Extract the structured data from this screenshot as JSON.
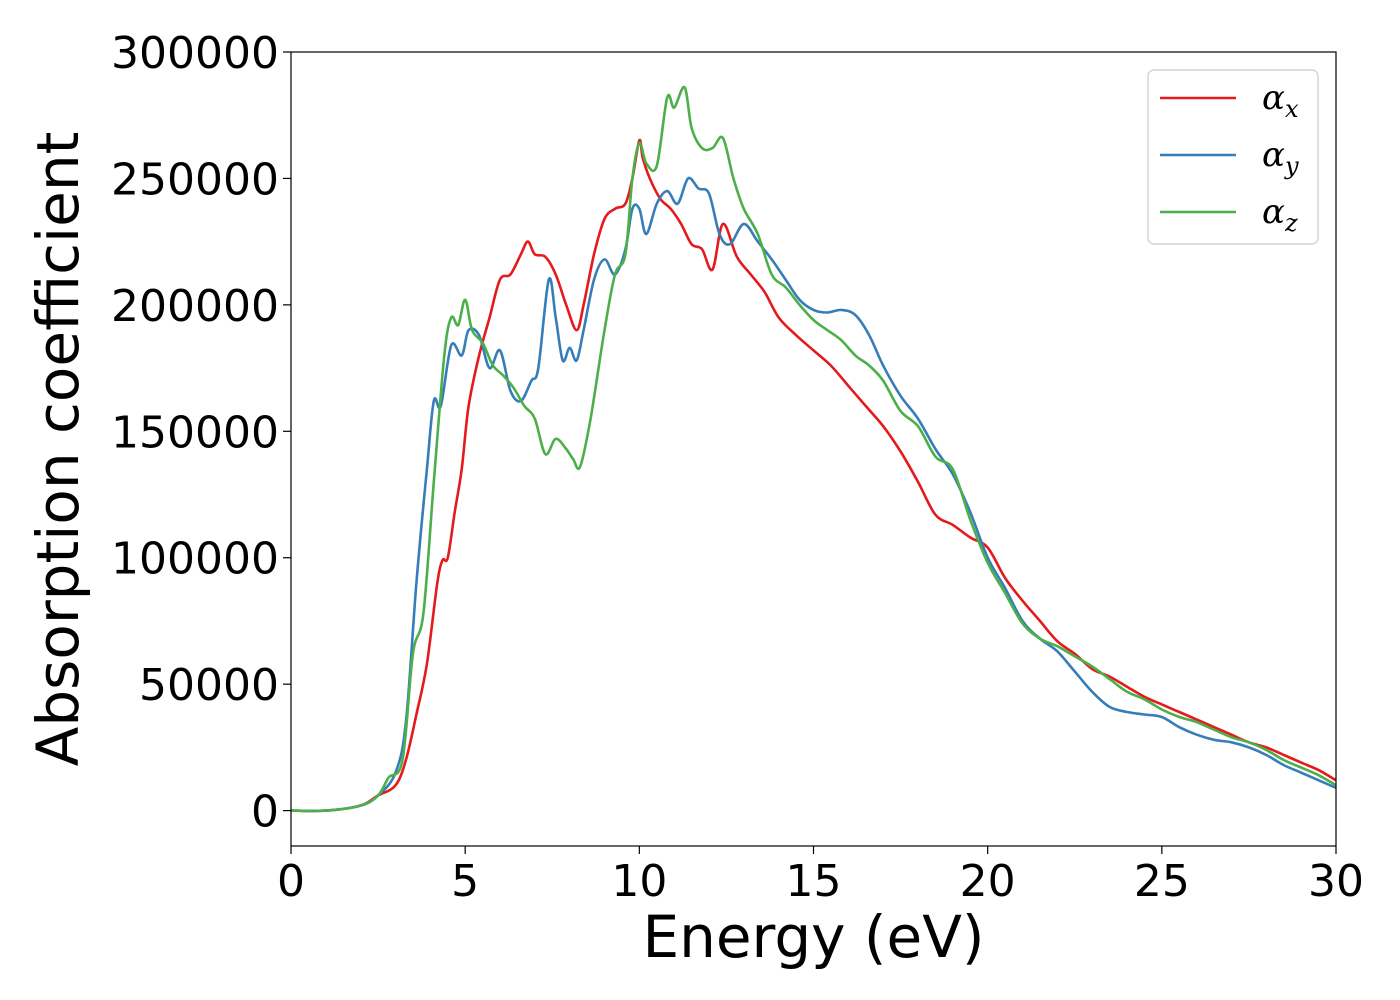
{
  "chart_data": {
    "type": "line",
    "title": "",
    "xlabel": "Energy (eV)",
    "ylabel": "Absorption coefficient",
    "xlim": [
      0,
      30
    ],
    "ylim": [
      -14000,
      300000
    ],
    "xticks": [
      0,
      5,
      10,
      15,
      20,
      25,
      30
    ],
    "yticks": [
      0,
      50000,
      100000,
      150000,
      200000,
      250000,
      300000
    ],
    "grid": false,
    "legend_position": "top-right",
    "series": [
      {
        "name": "α_x",
        "symbol": "α",
        "subscript": "x",
        "color": "#e41a1c",
        "x": [
          0,
          1,
          2,
          2.5,
          3,
          3.3,
          3.6,
          3.9,
          4.2,
          4.35,
          4.5,
          4.7,
          4.9,
          5.1,
          5.4,
          5.7,
          6.0,
          6.3,
          6.6,
          6.8,
          7.0,
          7.3,
          7.6,
          7.9,
          8.2,
          8.4,
          8.7,
          9.0,
          9.3,
          9.6,
          9.8,
          10.0,
          10.1,
          10.3,
          10.6,
          10.9,
          11.2,
          11.5,
          11.8,
          12.1,
          12.4,
          12.8,
          13.2,
          13.6,
          14.0,
          14.5,
          15.0,
          15.5,
          16.0,
          16.5,
          17.0,
          17.5,
          18.0,
          18.5,
          19.0,
          19.5,
          20.0,
          20.5,
          21.0,
          21.5,
          22.0,
          22.5,
          23.0,
          23.5,
          24.0,
          24.5,
          25.0,
          25.5,
          26.0,
          26.5,
          27.0,
          27.5,
          28.0,
          28.5,
          29.0,
          29.5,
          30.0
        ],
        "y": [
          0,
          0,
          2000,
          6000,
          10000,
          20000,
          38000,
          58000,
          90000,
          99000,
          100000,
          118000,
          135000,
          160000,
          180000,
          195000,
          210000,
          212000,
          220000,
          225000,
          220000,
          219000,
          212000,
          200000,
          190000,
          200000,
          220000,
          234000,
          238000,
          240000,
          250000,
          265000,
          258000,
          250000,
          242000,
          238000,
          232000,
          224000,
          222000,
          214000,
          232000,
          219000,
          212000,
          205000,
          195000,
          188000,
          182000,
          176000,
          168000,
          160000,
          152000,
          142000,
          130000,
          117000,
          113000,
          108000,
          104000,
          92000,
          83000,
          75000,
          67000,
          62000,
          56000,
          53000,
          49000,
          45000,
          42000,
          39000,
          36000,
          33000,
          30000,
          27000,
          25000,
          22000,
          19000,
          16000,
          12000
        ],
        "values": [
          0,
          0,
          2000,
          6000,
          10000,
          20000,
          38000,
          58000,
          90000,
          99000,
          100000,
          118000,
          135000,
          160000,
          180000,
          195000,
          210000,
          212000,
          220000,
          225000,
          220000,
          219000,
          212000,
          200000,
          190000,
          200000,
          220000,
          234000,
          238000,
          240000,
          250000,
          265000,
          258000,
          250000,
          242000,
          238000,
          232000,
          224000,
          222000,
          214000,
          232000,
          219000,
          212000,
          205000,
          195000,
          188000,
          182000,
          176000,
          168000,
          160000,
          152000,
          142000,
          130000,
          117000,
          113000,
          108000,
          104000,
          92000,
          83000,
          75000,
          67000,
          62000,
          56000,
          53000,
          49000,
          45000,
          42000,
          39000,
          36000,
          33000,
          30000,
          27000,
          25000,
          22000,
          19000,
          16000,
          12000
        ]
      },
      {
        "name": "α_y",
        "symbol": "α",
        "subscript": "y",
        "color": "#377eb8",
        "x": [
          0,
          1,
          2,
          2.5,
          3,
          3.3,
          3.6,
          3.9,
          4.1,
          4.3,
          4.6,
          4.9,
          5.1,
          5.4,
          5.7,
          6.0,
          6.3,
          6.6,
          6.9,
          7.1,
          7.4,
          7.6,
          7.8,
          8.0,
          8.2,
          8.4,
          8.7,
          9.0,
          9.3,
          9.6,
          9.8,
          10.0,
          10.2,
          10.5,
          10.8,
          11.1,
          11.4,
          11.7,
          12.0,
          12.3,
          12.6,
          13.0,
          13.4,
          13.8,
          14.2,
          14.6,
          15.0,
          15.4,
          15.8,
          16.2,
          16.6,
          17.0,
          17.5,
          18.0,
          18.5,
          19.0,
          19.5,
          20.0,
          20.5,
          21.0,
          21.5,
          22.0,
          22.5,
          23.0,
          23.5,
          24.0,
          24.5,
          25.0,
          25.5,
          26.0,
          26.5,
          27.0,
          27.5,
          28.0,
          28.5,
          29.0,
          29.5,
          30.0
        ],
        "y": [
          0,
          0,
          2000,
          6000,
          15000,
          35000,
          90000,
          135000,
          162000,
          160000,
          184000,
          180000,
          190000,
          188000,
          175000,
          182000,
          166000,
          162000,
          170000,
          175000,
          210000,
          195000,
          178000,
          183000,
          178000,
          190000,
          210000,
          218000,
          212000,
          222000,
          238000,
          238000,
          228000,
          240000,
          245000,
          240000,
          250000,
          246000,
          244000,
          228000,
          224000,
          232000,
          225000,
          218000,
          210000,
          202000,
          198000,
          197000,
          198000,
          196000,
          188000,
          176000,
          164000,
          155000,
          143000,
          133000,
          118000,
          100000,
          88000,
          75000,
          68000,
          63000,
          55000,
          47000,
          41000,
          39000,
          38000,
          37000,
          33000,
          30000,
          28000,
          27000,
          25000,
          22000,
          18000,
          15000,
          12000,
          9000
        ],
        "values": [
          0,
          0,
          2000,
          6000,
          15000,
          35000,
          90000,
          135000,
          162000,
          160000,
          184000,
          180000,
          190000,
          188000,
          175000,
          182000,
          166000,
          162000,
          170000,
          175000,
          210000,
          195000,
          178000,
          183000,
          178000,
          190000,
          210000,
          218000,
          212000,
          222000,
          238000,
          238000,
          228000,
          240000,
          245000,
          240000,
          250000,
          246000,
          244000,
          228000,
          224000,
          232000,
          225000,
          218000,
          210000,
          202000,
          198000,
          197000,
          198000,
          196000,
          188000,
          176000,
          164000,
          155000,
          143000,
          133000,
          118000,
          100000,
          88000,
          75000,
          68000,
          63000,
          55000,
          47000,
          41000,
          39000,
          38000,
          37000,
          33000,
          30000,
          28000,
          27000,
          25000,
          22000,
          18000,
          15000,
          12000,
          9000
        ]
      },
      {
        "name": "α_z",
        "symbol": "α",
        "subscript": "z",
        "color": "#4daf4a",
        "x": [
          0,
          1,
          2,
          2.5,
          2.8,
          3.2,
          3.5,
          3.8,
          4.1,
          4.4,
          4.6,
          4.8,
          5.0,
          5.2,
          5.5,
          5.8,
          6.1,
          6.4,
          6.7,
          7.0,
          7.3,
          7.6,
          7.9,
          8.1,
          8.3,
          8.6,
          9.0,
          9.3,
          9.6,
          9.8,
          10.0,
          10.2,
          10.5,
          10.8,
          11.0,
          11.3,
          11.5,
          11.8,
          12.1,
          12.4,
          12.7,
          13.0,
          13.4,
          13.8,
          14.2,
          14.6,
          15.0,
          15.4,
          15.8,
          16.2,
          16.6,
          17.0,
          17.5,
          18.0,
          18.5,
          19.0,
          19.5,
          20.0,
          20.5,
          21.0,
          21.5,
          22.0,
          22.5,
          23.0,
          23.5,
          24.0,
          24.5,
          25.0,
          25.5,
          26.0,
          26.5,
          27.0,
          27.5,
          28.0,
          28.5,
          29.0,
          29.5,
          30.0
        ],
        "y": [
          0,
          0,
          2000,
          6000,
          13000,
          20000,
          62000,
          78000,
          130000,
          180000,
          195000,
          192000,
          202000,
          190000,
          185000,
          176000,
          172000,
          167000,
          160000,
          155000,
          141000,
          147000,
          143000,
          139000,
          136000,
          155000,
          190000,
          212000,
          220000,
          250000,
          264000,
          256000,
          255000,
          282000,
          278000,
          286000,
          270000,
          262000,
          262000,
          266000,
          250000,
          238000,
          228000,
          212000,
          207000,
          200000,
          194000,
          190000,
          186000,
          180000,
          176000,
          170000,
          158000,
          152000,
          140000,
          135000,
          115000,
          98000,
          86000,
          74000,
          68000,
          65000,
          61000,
          57000,
          52000,
          47000,
          44000,
          40000,
          37000,
          35000,
          32000,
          29000,
          27000,
          24000,
          20000,
          17000,
          14000,
          10000
        ],
        "values": [
          0,
          0,
          2000,
          6000,
          13000,
          20000,
          62000,
          78000,
          130000,
          180000,
          195000,
          192000,
          202000,
          190000,
          185000,
          176000,
          172000,
          167000,
          160000,
          155000,
          141000,
          147000,
          143000,
          139000,
          136000,
          155000,
          190000,
          212000,
          220000,
          250000,
          264000,
          256000,
          255000,
          282000,
          278000,
          286000,
          270000,
          262000,
          262000,
          266000,
          250000,
          238000,
          228000,
          212000,
          207000,
          200000,
          194000,
          190000,
          186000,
          180000,
          176000,
          170000,
          158000,
          152000,
          140000,
          135000,
          115000,
          98000,
          86000,
          74000,
          68000,
          65000,
          61000,
          57000,
          52000,
          47000,
          44000,
          40000,
          37000,
          35000,
          32000,
          29000,
          27000,
          24000,
          20000,
          17000,
          14000,
          10000
        ]
      }
    ]
  }
}
